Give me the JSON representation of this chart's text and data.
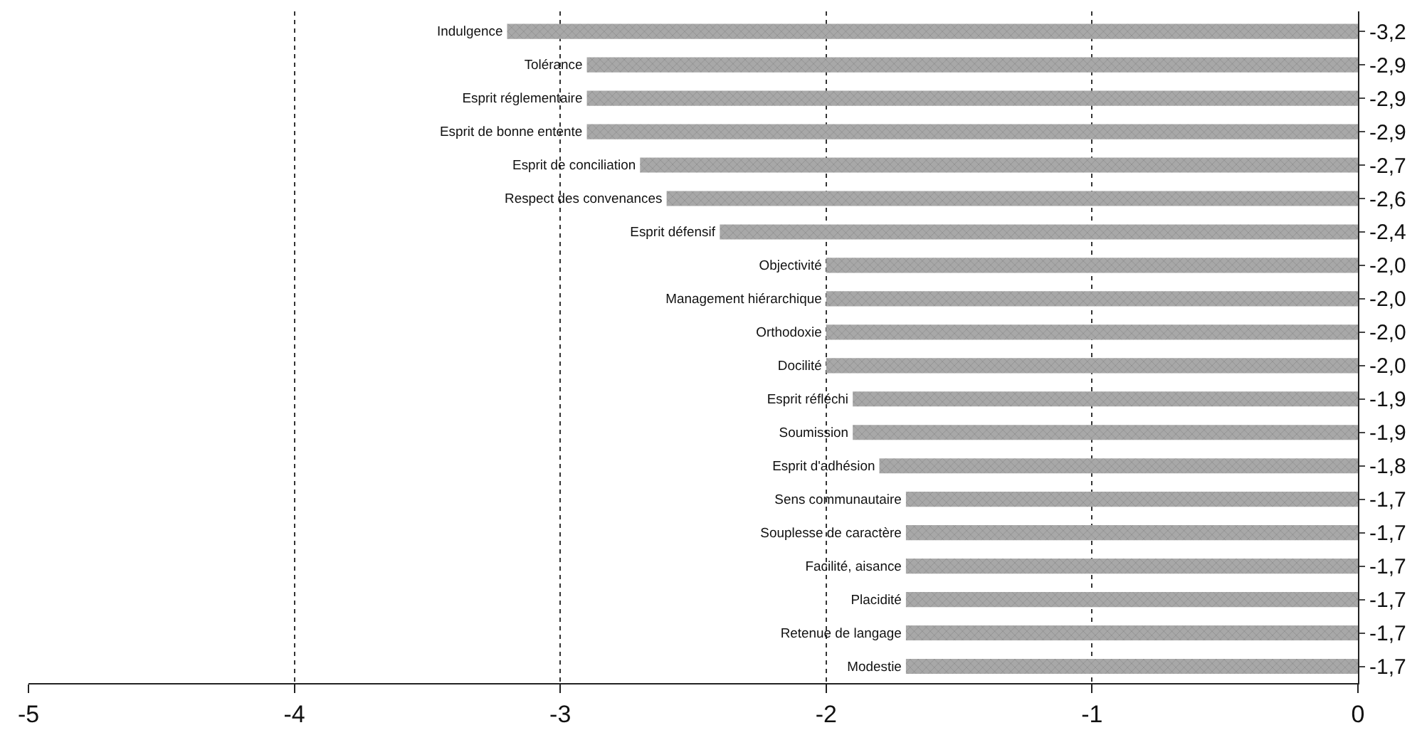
{
  "chart_data": {
    "type": "bar",
    "orientation": "horizontal",
    "categories": [
      "Indulgence",
      "Tolérance",
      "Esprit réglementaire",
      "Esprit de bonne entente",
      "Esprit de conciliation",
      "Respect des convenances",
      "Esprit défensif",
      "Objectivité",
      "Management hiérarchique",
      "Orthodoxie",
      "Docilité",
      "Esprit réfléchi",
      "Soumission",
      "Esprit d'adhésion",
      "Sens communautaire",
      "Souplesse de caractère",
      "Facilité, aisance",
      "Placidité",
      "Retenue de langage",
      "Modestie"
    ],
    "values": [
      -3.2,
      -2.9,
      -2.9,
      -2.9,
      -2.7,
      -2.6,
      -2.4,
      -2.0,
      -2.0,
      -2.0,
      -2.0,
      -1.9,
      -1.9,
      -1.8,
      -1.7,
      -1.7,
      -1.7,
      -1.7,
      -1.7,
      -1.7
    ],
    "value_labels": [
      "-3,2",
      "-2,9",
      "-2,9",
      "-2,9",
      "-2,7",
      "-2,6",
      "-2,4",
      "-2,0",
      "-2,0",
      "-2,0",
      "-2,0",
      "-1,9",
      "-1,9",
      "-1,8",
      "-1,7",
      "-1,7",
      "-1,7",
      "-1,7",
      "-1,7",
      "-1,7"
    ],
    "color": "#a8a8a8",
    "xlim": [
      -5,
      0
    ],
    "xticks": [
      -5,
      -4,
      -3,
      -2,
      -1,
      0
    ],
    "grid": "x"
  }
}
